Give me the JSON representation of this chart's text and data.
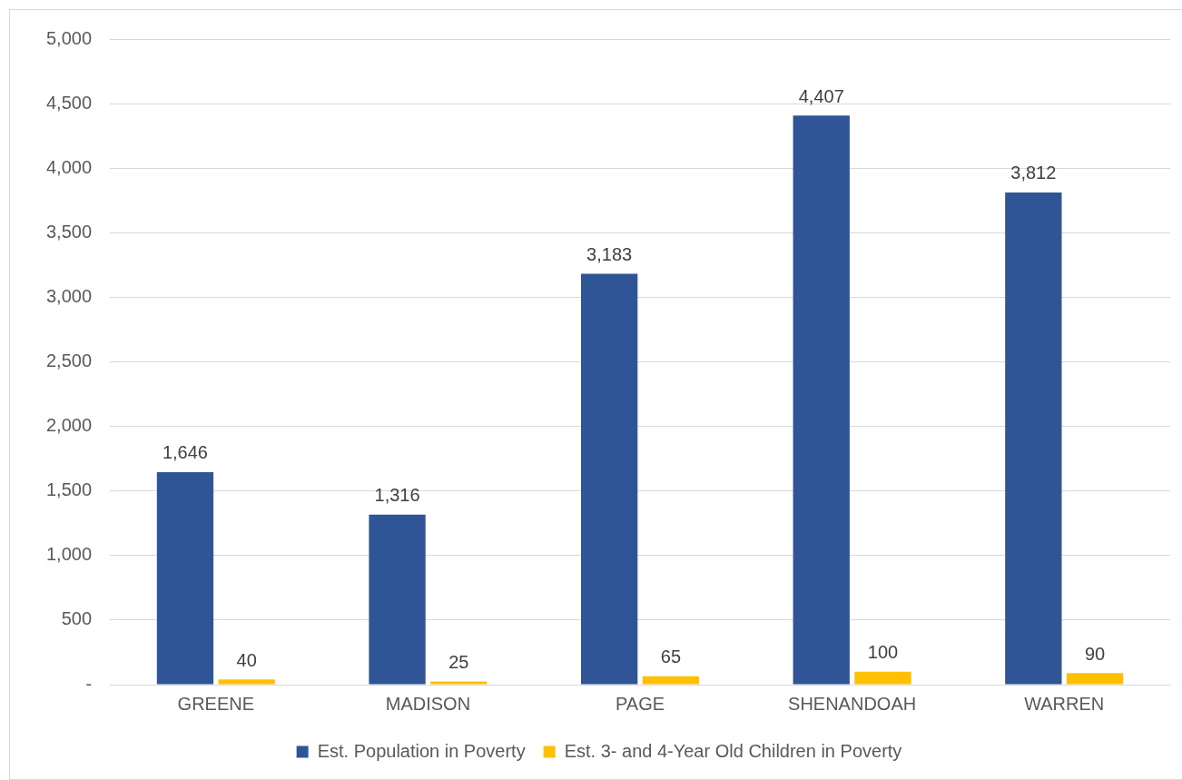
{
  "chart_data": {
    "type": "bar",
    "categories": [
      "GREENE",
      "MADISON",
      "PAGE",
      "SHENANDOAH",
      "WARREN"
    ],
    "series": [
      {
        "name": "Est. Population in Poverty",
        "color": "#2f5597",
        "values": [
          1646,
          1316,
          3183,
          4407,
          3812
        ],
        "value_labels": [
          "1,646",
          "1,316",
          "3,183",
          "4,407",
          "3,812"
        ]
      },
      {
        "name": "Est. 3- and 4-Year Old Children in Poverty",
        "color": "#ffc000",
        "values": [
          40,
          25,
          65,
          100,
          90
        ],
        "value_labels": [
          "40",
          "25",
          "65",
          "100",
          "90"
        ]
      }
    ],
    "ylim": [
      0,
      5000
    ],
    "yticks": [
      {
        "value": 0,
        "label": "-"
      },
      {
        "value": 500,
        "label": "500"
      },
      {
        "value": 1000,
        "label": "1,000"
      },
      {
        "value": 1500,
        "label": "1,500"
      },
      {
        "value": 2000,
        "label": "2,000"
      },
      {
        "value": 2500,
        "label": "2,500"
      },
      {
        "value": 3000,
        "label": "3,000"
      },
      {
        "value": 3500,
        "label": "3,500"
      },
      {
        "value": 4000,
        "label": "4,000"
      },
      {
        "value": 4500,
        "label": "4,500"
      },
      {
        "value": 5000,
        "label": "5,000"
      }
    ],
    "grid": "y",
    "legend": "bottom"
  }
}
